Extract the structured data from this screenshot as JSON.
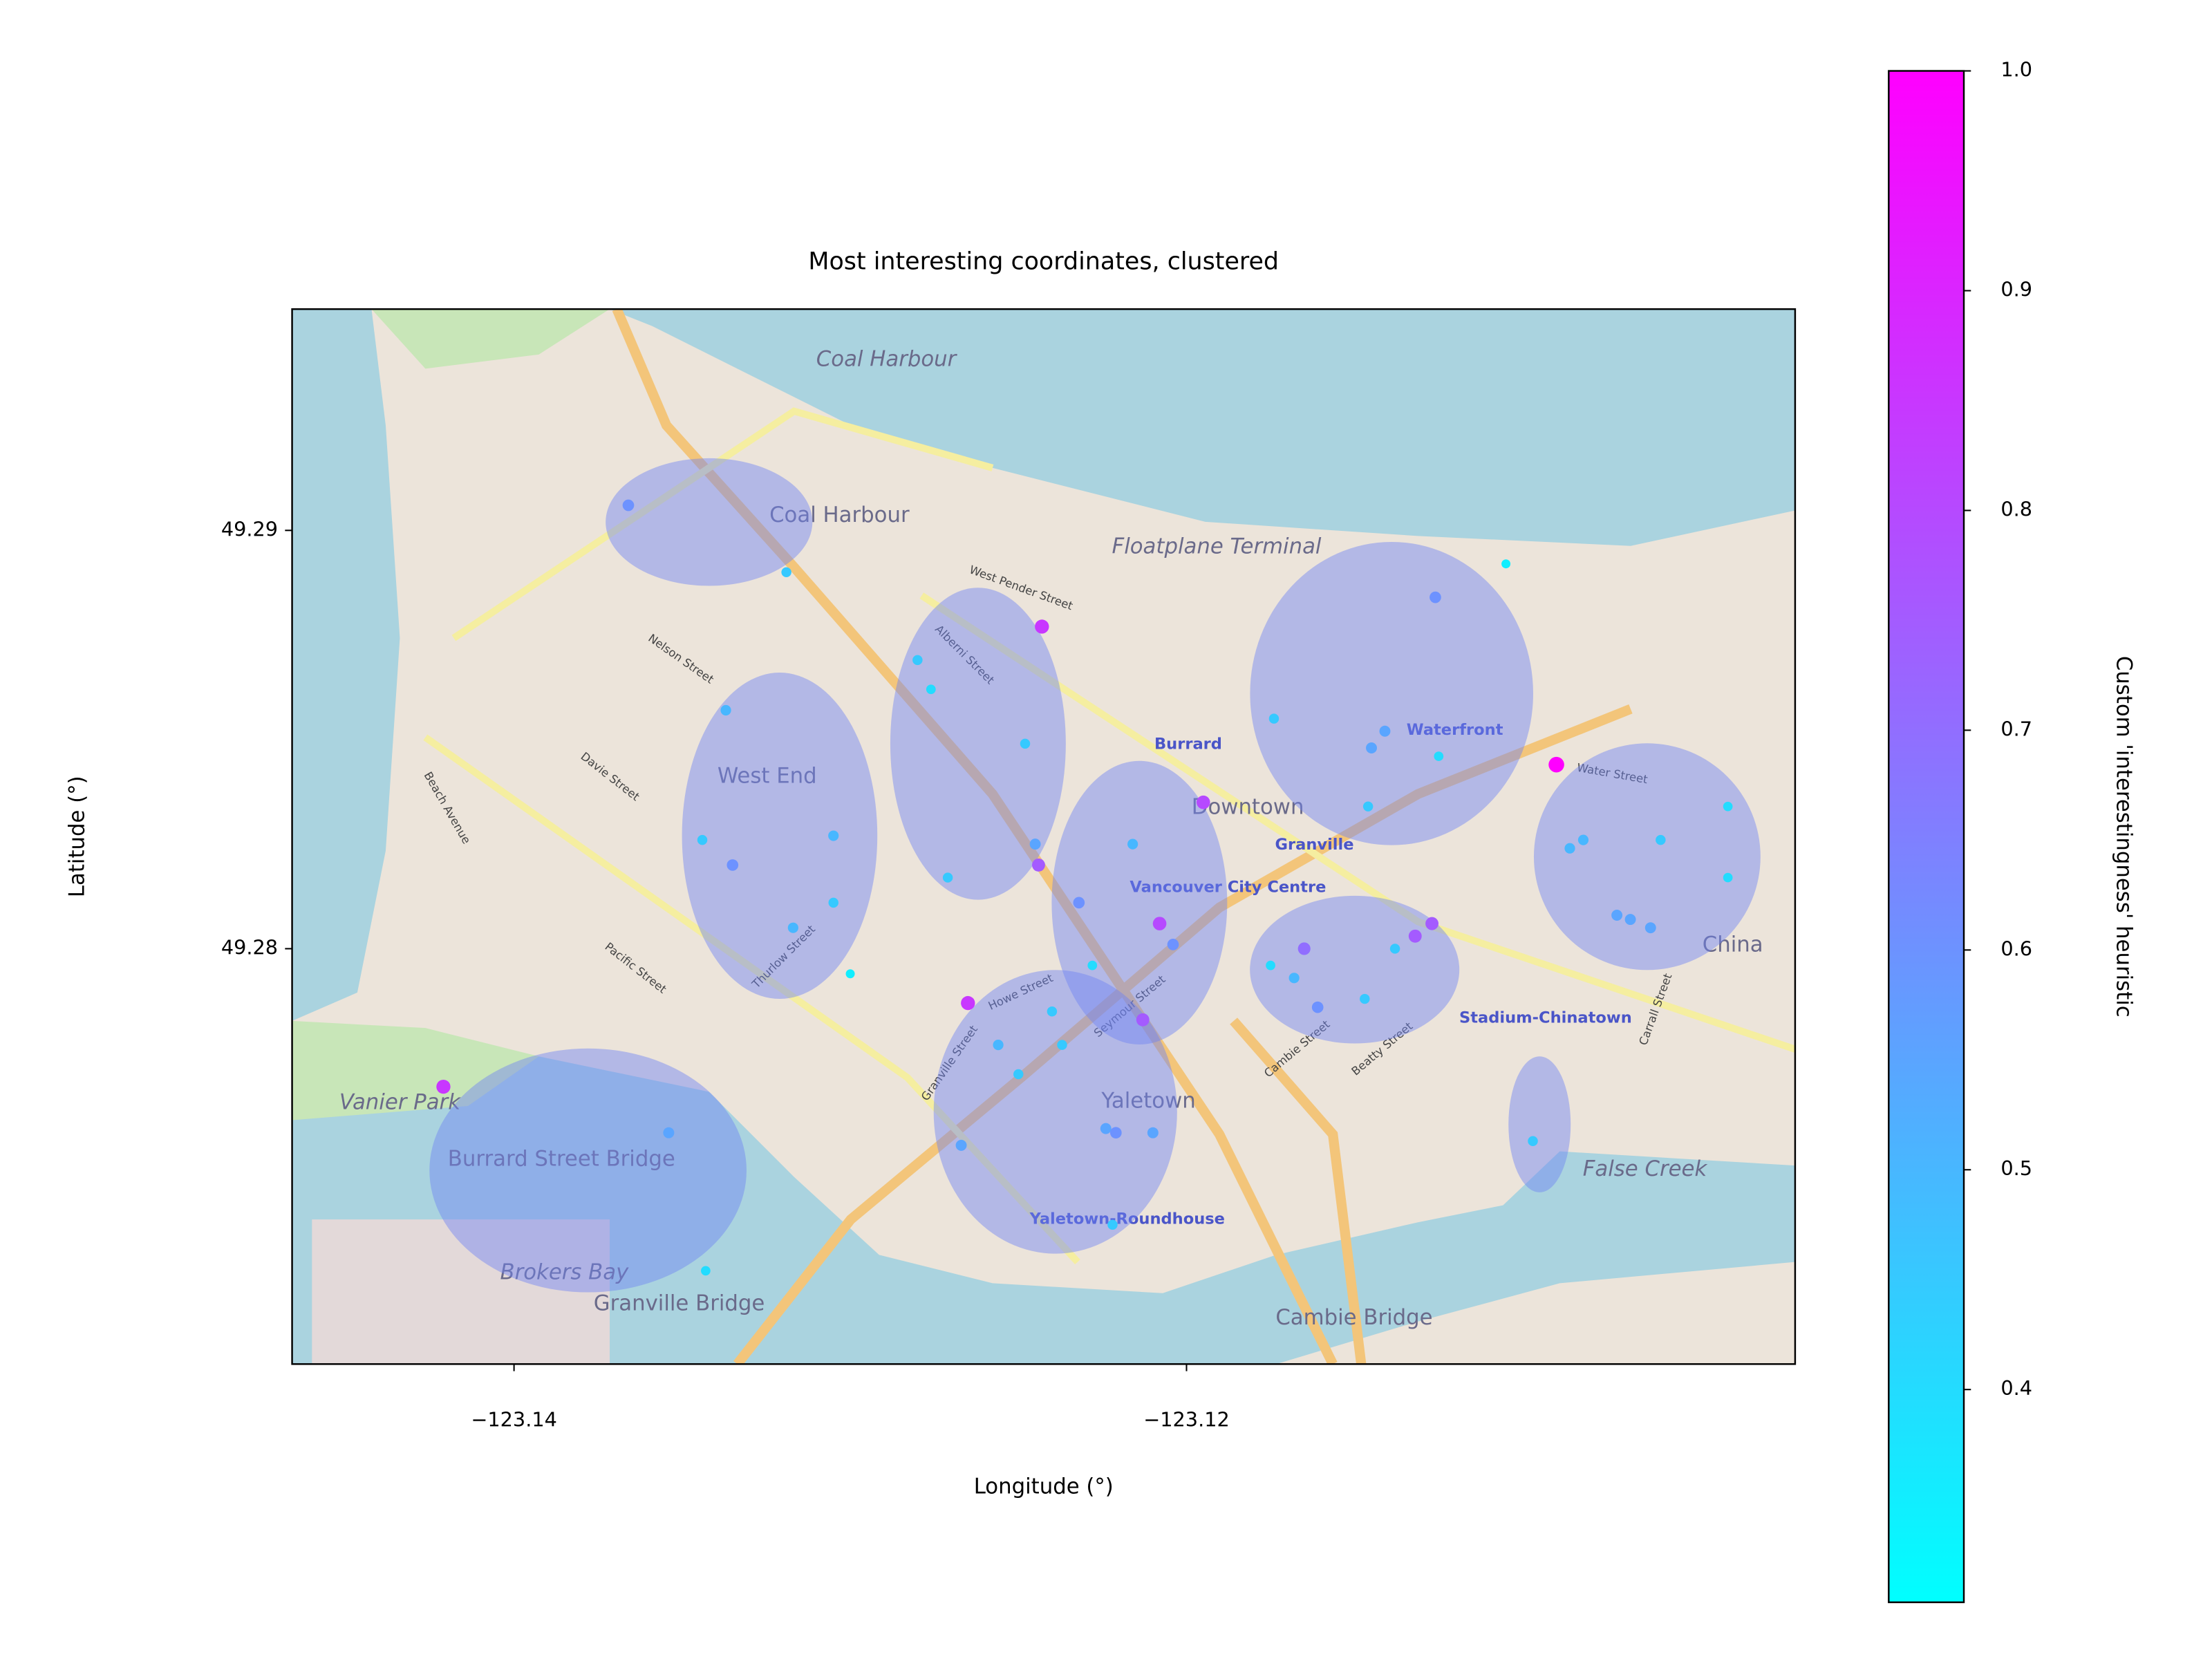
{
  "chart_data": {
    "type": "scatter",
    "title": "Most interesting coordinates, clustered",
    "x_label": "Longitude (°)",
    "y_label": "Latitude (°)",
    "colorbar_label": "Custom 'interestingness' heuristic",
    "colormap": "cool",
    "clim": [
      0.3032,
      1.0
    ],
    "cticks": [
      0.4,
      0.5,
      0.6,
      0.7,
      0.8,
      0.9,
      {
        "value": 1.0,
        "label": "1.0"
      }
    ],
    "xlim": [
      -123.1466,
      -123.1019
    ],
    "ylim": [
      49.27007,
      49.29529
    ],
    "xticks": [
      {
        "value": -123.14,
        "label": "−123.14"
      },
      {
        "value": -123.12,
        "label": "−123.12"
      }
    ],
    "yticks": [
      49.28,
      49.29
    ],
    "x": [
      -123.1366,
      -123.1319,
      -123.1243,
      -123.128,
      -123.1276,
      -123.1337,
      -123.1248,
      -123.1344,
      -123.1335,
      -123.1305,
      -123.1305,
      -123.1271,
      -123.1317,
      -123.13,
      -123.1245,
      -123.1244,
      -123.1195,
      -123.1216,
      -123.1232,
      -123.1208,
      -123.1204,
      -123.1228,
      -123.1265,
      -123.124,
      -123.1213,
      -123.1256,
      -123.1237,
      -123.125,
      -123.1224,
      -123.1221,
      -123.121,
      -123.1267,
      -123.1222,
      -123.1126,
      -123.1105,
      -123.1174,
      -123.1141,
      -123.1145,
      -123.1125,
      -123.1146,
      -123.109,
      -123.1175,
      -123.1165,
      -123.1168,
      -123.1161,
      -123.1147,
      -123.1138,
      -123.1132,
      -123.1127,
      -123.1097,
      -123.1086,
      -123.1082,
      -123.1059,
      -123.1072,
      -123.1068,
      -123.1062,
      -123.1039,
      -123.1039,
      -123.1421,
      -123.1354,
      -123.1343
    ],
    "y": [
      49.2906,
      49.289,
      49.2877,
      49.2869,
      49.2862,
      49.2857,
      49.2849,
      49.2826,
      49.282,
      49.2827,
      49.2811,
      49.2817,
      49.2805,
      49.2794,
      49.2825,
      49.282,
      49.2835,
      49.2825,
      49.2811,
      49.2806,
      49.2801,
      49.2796,
      49.2787,
      49.2785,
      49.2783,
      49.2777,
      49.2777,
      49.277,
      49.2757,
      49.2756,
      49.2756,
      49.2753,
      49.2734,
      49.2884,
      49.2892,
      49.2855,
      49.2852,
      49.2848,
      49.2846,
      49.2834,
      49.2844,
      49.2796,
      49.28,
      49.2793,
      49.2786,
      49.2788,
      49.28,
      49.2803,
      49.2806,
      49.2754,
      49.2824,
      49.2826,
      49.2826,
      49.2808,
      49.2807,
      49.2805,
      49.2834,
      49.2817,
      49.2767,
      49.2756,
      49.2723
    ],
    "values": [
      0.6,
      0.45,
      0.85,
      0.45,
      0.4,
      0.5,
      0.45,
      0.45,
      0.6,
      0.5,
      0.45,
      0.45,
      0.5,
      0.35,
      0.55,
      0.75,
      0.8,
      0.5,
      0.6,
      0.8,
      0.6,
      0.4,
      0.85,
      0.45,
      0.75,
      0.5,
      0.45,
      0.45,
      0.55,
      0.6,
      0.55,
      0.55,
      0.45,
      0.6,
      0.35,
      0.45,
      0.55,
      0.55,
      0.4,
      0.45,
      1.0,
      0.4,
      0.7,
      0.5,
      0.6,
      0.45,
      0.45,
      0.75,
      0.75,
      0.45,
      0.5,
      0.5,
      0.45,
      0.55,
      0.55,
      0.55,
      0.4,
      0.4,
      0.85,
      0.55,
      0.4
    ],
    "cluster_color": "#6f82f5",
    "clusters": [
      {
        "center": [
          -123.1342,
          49.2902
        ],
        "width": 0.00615,
        "height": 0.00305
      },
      {
        "center": [
          -123.1321,
          49.2827
        ],
        "width": 0.00581,
        "height": 0.0078
      },
      {
        "center": [
          -123.1262,
          49.2849
        ],
        "width": 0.00522,
        "height": 0.00746
      },
      {
        "center": [
          -123.1214,
          49.2811
        ],
        "width": 0.00522,
        "height": 0.00678
      },
      {
        "center": [
          -123.1239,
          49.2761
        ],
        "width": 0.00724,
        "height": 0.00678
      },
      {
        "center": [
          -123.1139,
          49.2861
        ],
        "width": 0.00842,
        "height": 0.00725
      },
      {
        "center": [
          -123.115,
          49.2795
        ],
        "width": 0.00623,
        "height": 0.00353
      },
      {
        "center": [
          -123.1063,
          49.2822
        ],
        "width": 0.00674,
        "height": 0.00542
      },
      {
        "center": [
          -123.1378,
          49.2747
        ],
        "width": 0.00943,
        "height": 0.00583
      },
      {
        "center": [
          -123.1095,
          49.2758
        ],
        "width": 0.00185,
        "height": 0.00325
      }
    ],
    "map_labels": [
      "Coal Harbour",
      "West End",
      "Downtown",
      "Yaletown",
      "Burrard Street Bridge",
      "Granville Bridge",
      "Cambie Bridge",
      "False Creek",
      "Waterfront",
      "Granville",
      "Vancouver City Centre",
      "Stadium-Chinatown",
      "Yaletown-Roundhouse",
      "Floatplane Terminal",
      "West Pender Street",
      "Nelson Street",
      "Davie Street",
      "Pacific Street",
      "Alberni Street",
      "Thurlow Street",
      "Howe Street",
      "Seymour Street",
      "Water Street",
      "Beach Avenue",
      "Burrard",
      "Beatty Street",
      "Cambie Street",
      "Granville Street",
      "Coal Harbour",
      "Carrall Street",
      "Brokers Bay",
      "Vanier Park",
      "China"
    ]
  }
}
